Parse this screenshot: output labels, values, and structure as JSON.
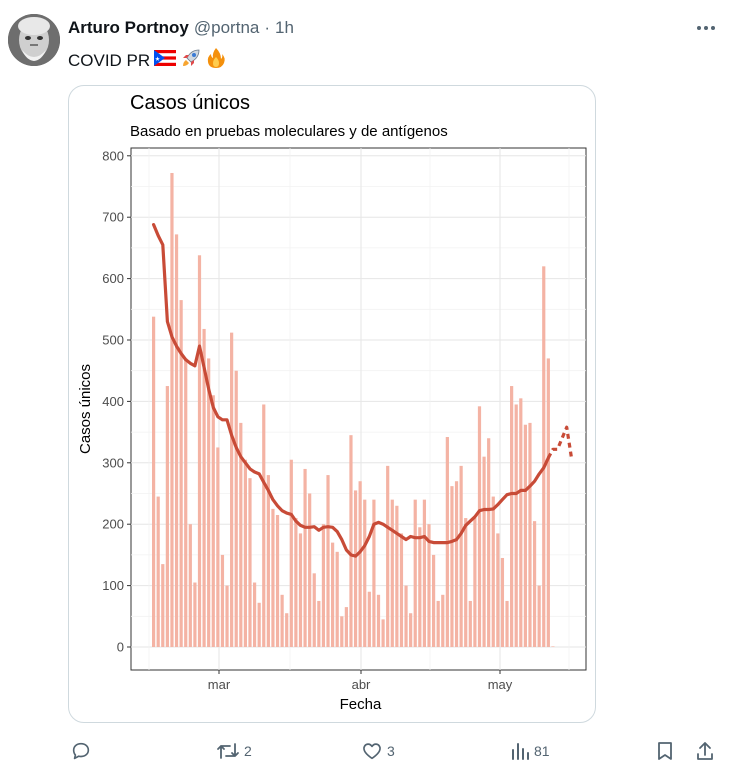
{
  "tweet": {
    "author": "Arturo Portnoy",
    "handle": "@portna",
    "separator": "·",
    "time": "1h",
    "text": "COVID PR",
    "emojis": [
      "puerto-rico-flag",
      "rocket",
      "fire"
    ]
  },
  "actions": {
    "replies": "",
    "retweets": "2",
    "likes": "3",
    "views": "81"
  },
  "colors": {
    "bar": "#f4b3a4",
    "line": "#c84b37",
    "icon": "#536471"
  },
  "chart_data": {
    "type": "bar",
    "title": "Casos únicos",
    "subtitle": "Basado en pruebas moleculares y de antígenos",
    "xlabel": "Fecha",
    "ylabel": "Casos únicos",
    "ylim": [
      0,
      800
    ],
    "yticks": [
      "0",
      "100",
      "200",
      "300",
      "400",
      "500",
      "600",
      "700",
      "800"
    ],
    "xticks": [
      "mar",
      "abr",
      "may"
    ],
    "grid": true,
    "bars": [
      538,
      245,
      135,
      425,
      772,
      672,
      565,
      470,
      200,
      105,
      638,
      518,
      470,
      410,
      325,
      150,
      100,
      512,
      450,
      365,
      305,
      275,
      105,
      72,
      395,
      280,
      225,
      215,
      85,
      55,
      305,
      210,
      185,
      290,
      250,
      120,
      75,
      200,
      280,
      170,
      155,
      50,
      65,
      345,
      255,
      270,
      240,
      90,
      240,
      85,
      45,
      295,
      240,
      230,
      185,
      100,
      55,
      240,
      195,
      240,
      200,
      150,
      75,
      85,
      342,
      262,
      270,
      295,
      210,
      75,
      210,
      392,
      310,
      340,
      245,
      185,
      145,
      75,
      425,
      395,
      405,
      362,
      365,
      205,
      100,
      620,
      470,
      0
    ],
    "trend": {
      "name": "",
      "solid": [
        688,
        670,
        655,
        530,
        505,
        490,
        478,
        468,
        462,
        458,
        490,
        455,
        420,
        390,
        375,
        370,
        370,
        345,
        325,
        310,
        300,
        290,
        285,
        282,
        268,
        255,
        240,
        230,
        222,
        218,
        216,
        205,
        198,
        195,
        195,
        196,
        190,
        195,
        196,
        195,
        188,
        175,
        158,
        150,
        148,
        155,
        165,
        180,
        200,
        203,
        200,
        195,
        190,
        185,
        180,
        175,
        180,
        178,
        178,
        180,
        172,
        170,
        170,
        170,
        170,
        172,
        175,
        185,
        198,
        205,
        212,
        222,
        224,
        224,
        225,
        232,
        240,
        248,
        250,
        250,
        255,
        255,
        262,
        270,
        282,
        292,
        308
      ],
      "dashed": [
        322,
        322,
        340,
        358,
        310
      ]
    }
  }
}
